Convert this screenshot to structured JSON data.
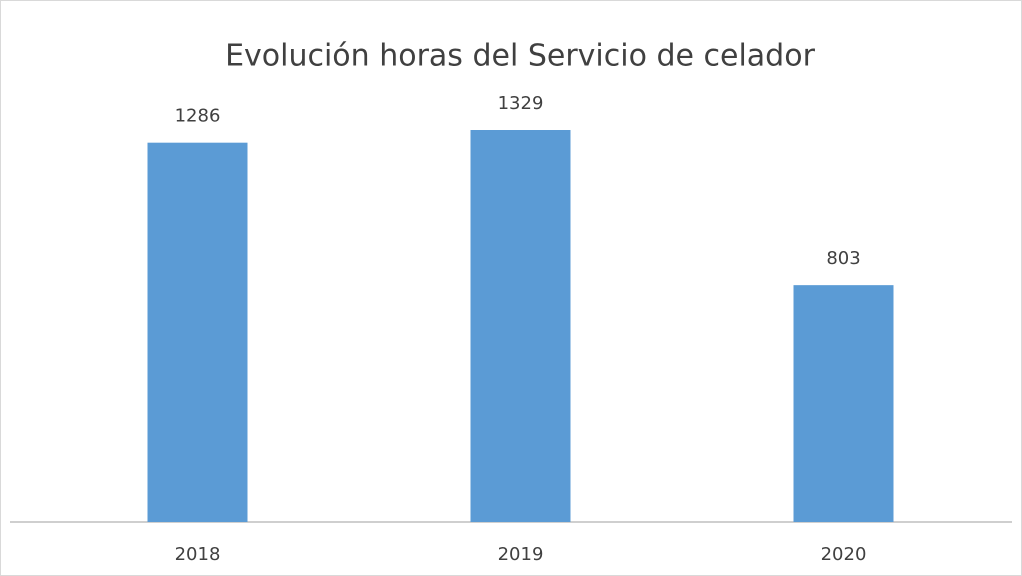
{
  "chart_data": {
    "type": "bar",
    "title": "Evolución horas del Servicio de celador",
    "categories": [
      "2018",
      "2019",
      "2020"
    ],
    "values": [
      1286,
      1329,
      803
    ],
    "color": "#5b9bd5"
  }
}
